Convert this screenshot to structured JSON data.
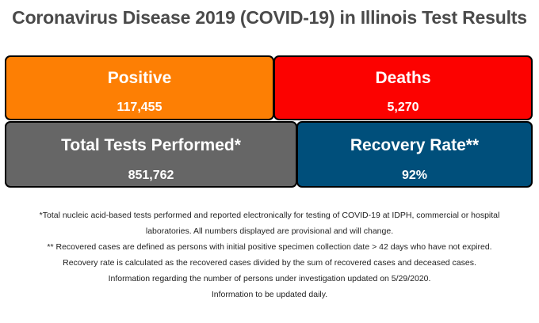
{
  "title": "Coronavirus Disease 2019 (COVID-19) in Illinois Test Results",
  "tiles": {
    "positive": {
      "label": "Positive",
      "value": "117,455",
      "color": "#fd7f04"
    },
    "deaths": {
      "label": "Deaths",
      "value": "5,270",
      "color": "#fc0200"
    },
    "total_tests": {
      "label": "Total Tests Performed*",
      "value": "851,762",
      "color": "#666666"
    },
    "recovery_rate": {
      "label": "Recovery Rate**",
      "value": "92%",
      "color": "#004f7b"
    }
  },
  "notes": [
    "*Total nucleic acid-based tests performed and reported electronically for testing of COVID-19 at IDPH, commercial or hospital",
    "laboratories. All numbers displayed are provisional and will change.",
    "** Recovered cases are defined as persons with initial positive specimen collection date > 42 days who have not expired.",
    "Recovery rate is calculated as the recovered cases divided by the sum of recovered cases and deceased cases.",
    "Information regarding the number of persons under investigation updated on 5/29/2020.",
    "Information to be updated daily."
  ]
}
